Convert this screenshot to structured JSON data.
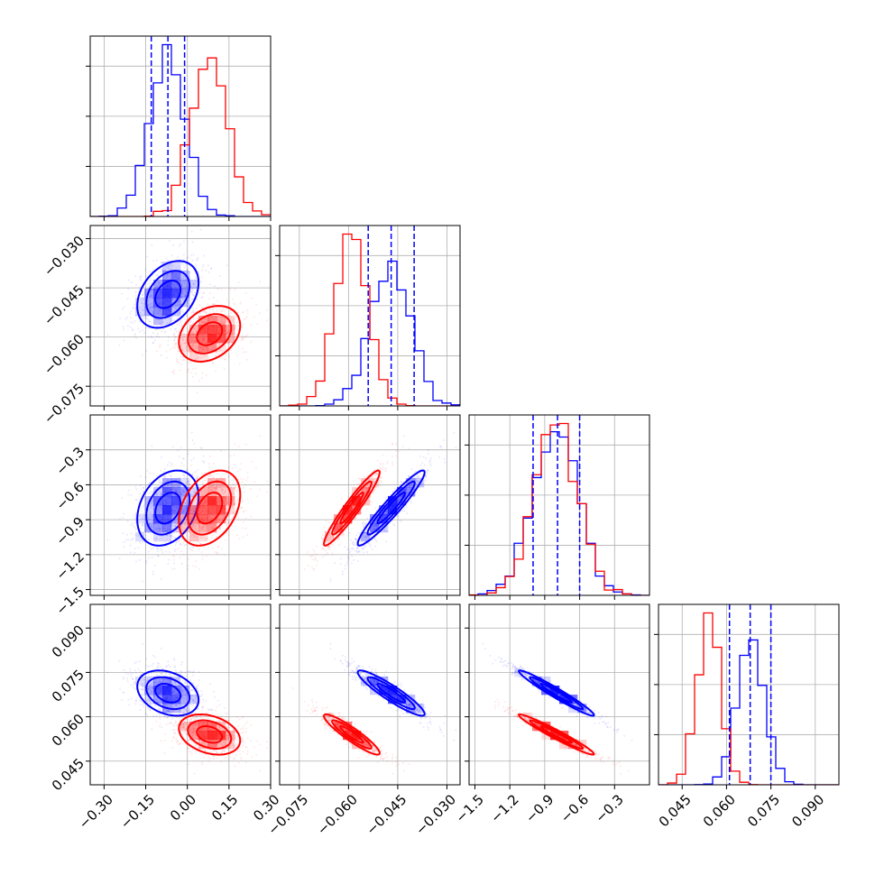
{
  "chart_data": {
    "type": "corner",
    "colors": {
      "model_a": "#0000ff",
      "model_b": "#ff0000"
    },
    "grid": true,
    "parameters": [
      {
        "range": [
          -0.35,
          0.3
        ],
        "ticks": [
          -0.3,
          -0.15,
          0.0,
          0.15,
          0.3
        ],
        "tick_labels": [
          "−0.30",
          "−0.15",
          "0.00",
          "0.15",
          "0.30"
        ]
      },
      {
        "range": [
          -0.081,
          -0.026
        ],
        "ticks": [
          -0.075,
          -0.06,
          -0.045,
          -0.03
        ],
        "tick_labels": [
          "−0.075",
          "−0.060",
          "−0.045",
          "−0.030"
        ]
      },
      {
        "range": [
          -1.55,
          0.0
        ],
        "ticks": [
          -1.5,
          -1.2,
          -0.9,
          -0.6,
          -0.3
        ],
        "tick_labels": [
          "−1.5",
          "−1.2",
          "−0.9",
          "−0.6",
          "−0.3"
        ]
      },
      {
        "range": [
          0.037,
          0.098
        ],
        "ticks": [
          0.045,
          0.06,
          0.075,
          0.09
        ],
        "tick_labels": [
          "0.045",
          "0.060",
          "0.075",
          "0.090"
        ]
      }
    ],
    "samples": [
      {
        "color": "#0000ff",
        "mean": [
          -0.07,
          -0.047,
          -0.8,
          0.068
        ],
        "std": [
          0.065,
          0.006,
          0.19,
          0.0045
        ],
        "corr": [
          [
            1,
            0.35,
            0.3,
            -0.3
          ],
          [
            0.35,
            1,
            0.95,
            -0.92
          ],
          [
            0.3,
            0.95,
            1,
            -0.97
          ],
          [
            -0.3,
            -0.92,
            -0.97,
            1
          ]
        ],
        "quantiles": [
          [
            -0.13,
            -0.07,
            -0.01
          ],
          [
            -0.054,
            -0.047,
            -0.04
          ],
          [
            -1.0,
            -0.79,
            -0.6
          ],
          [
            0.061,
            0.068,
            0.075
          ]
        ]
      },
      {
        "color": "#ff0000",
        "mean": [
          0.08,
          -0.059,
          -0.8,
          0.054
        ],
        "std": [
          0.065,
          0.005,
          0.19,
          0.004
        ],
        "corr": [
          [
            1,
            0.3,
            0.35,
            -0.3
          ],
          [
            0.3,
            1,
            0.95,
            -0.92
          ],
          [
            0.35,
            0.95,
            1,
            -0.97
          ],
          [
            -0.3,
            -0.92,
            -0.97,
            1
          ]
        ]
      }
    ]
  }
}
